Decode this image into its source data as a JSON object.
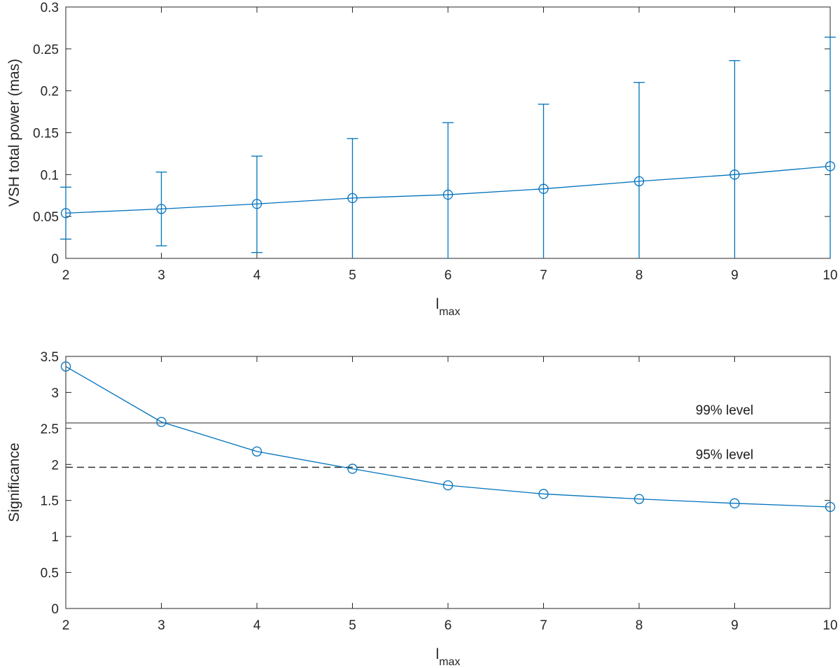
{
  "chart_data": [
    {
      "type": "line",
      "title": "",
      "xlabel_main": "l",
      "xlabel_sub": "max",
      "ylabel": "VSH total power (mas)",
      "xlim": [
        2,
        10
      ],
      "ylim": [
        0,
        0.3
      ],
      "xticks": [
        2,
        3,
        4,
        5,
        6,
        7,
        8,
        9,
        10
      ],
      "yticks": [
        0,
        0.05,
        0.1,
        0.15,
        0.2,
        0.25,
        0.3
      ],
      "xtick_labels": [
        "2",
        "3",
        "4",
        "5",
        "6",
        "7",
        "8",
        "9",
        "10"
      ],
      "ytick_labels": [
        "0",
        "0.05",
        "0.1",
        "0.15",
        "0.2",
        "0.25",
        "0.3"
      ],
      "grid": false,
      "color": "#0072BD",
      "series": [
        {
          "marker": "circle",
          "x": [
            2,
            3,
            4,
            5,
            6,
            7,
            8,
            9,
            10
          ],
          "y": [
            0.054,
            0.059,
            0.065,
            0.072,
            0.076,
            0.083,
            0.092,
            0.1,
            0.11
          ],
          "err_low": [
            0.023,
            0.015,
            0.007,
            0,
            0,
            0,
            0,
            0,
            0
          ],
          "err_high": [
            0.085,
            0.103,
            0.122,
            0.143,
            0.162,
            0.184,
            0.21,
            0.236,
            0.264
          ]
        }
      ]
    },
    {
      "type": "line",
      "title": "",
      "xlabel_main": "l",
      "xlabel_sub": "max",
      "ylabel": "Significance",
      "xlim": [
        2,
        10
      ],
      "ylim": [
        0,
        3.5
      ],
      "xticks": [
        2,
        3,
        4,
        5,
        6,
        7,
        8,
        9,
        10
      ],
      "yticks": [
        0,
        0.5,
        1,
        1.5,
        2,
        2.5,
        3,
        3.5
      ],
      "xtick_labels": [
        "2",
        "3",
        "4",
        "5",
        "6",
        "7",
        "8",
        "9",
        "10"
      ],
      "ytick_labels": [
        "0",
        "0.5",
        "1",
        "1.5",
        "2",
        "2.5",
        "3",
        "3.5"
      ],
      "grid": false,
      "color": "#0072BD",
      "series": [
        {
          "marker": "circle",
          "x": [
            2,
            3,
            4,
            5,
            6,
            7,
            8,
            9,
            10
          ],
          "y": [
            3.36,
            2.59,
            2.18,
            1.94,
            1.71,
            1.59,
            1.52,
            1.46,
            1.41
          ]
        }
      ],
      "reference_lines": [
        {
          "y": 2.576,
          "style": "solid",
          "color": "#6e6e6e",
          "label": "99% level"
        },
        {
          "y": 1.96,
          "style": "dashed",
          "color": "#333333",
          "label": "95% level"
        }
      ]
    }
  ]
}
